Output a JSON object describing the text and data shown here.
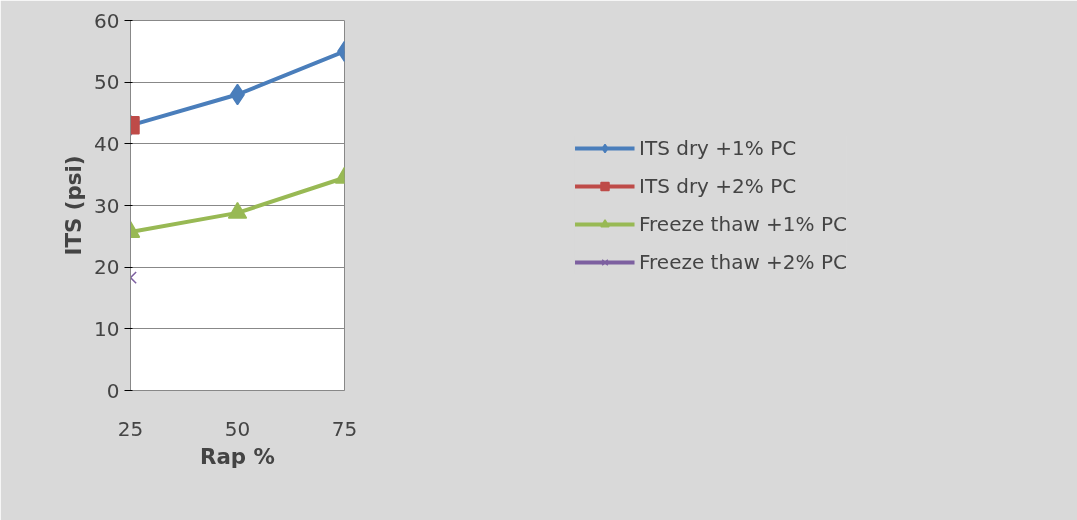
{
  "chart_data": {
    "type": "line",
    "xlabel": "Rap %",
    "ylabel": "ITS (psi)",
    "xlim": [
      25,
      75
    ],
    "xticks": [
      25,
      50,
      75
    ],
    "ylim": [
      0,
      60
    ],
    "yticks": [
      0,
      10,
      20,
      30,
      40,
      50,
      60
    ],
    "grid": "y",
    "legend": "right",
    "series": [
      {
        "name": "ITS dry +1% PC",
        "color": "#4a7ebb",
        "x": [
          25,
          50,
          75
        ],
        "values": [
          43,
          48,
          55
        ],
        "marker": "diamond"
      },
      {
        "name": "ITS dry +2% PC",
        "color": "#be4b48",
        "x": [
          25
        ],
        "values": [
          43
        ],
        "marker": "square"
      },
      {
        "name": "Freeze thaw +1% PC",
        "color": "#98b954",
        "x": [
          25,
          50,
          75
        ],
        "values": [
          25.7,
          28.8,
          34.5
        ],
        "marker": "triangle"
      },
      {
        "name": "Freeze thaw +2% PC",
        "color": "#7d60a0",
        "x": [
          25
        ],
        "values": [
          18.3
        ],
        "marker": "cross"
      }
    ]
  }
}
